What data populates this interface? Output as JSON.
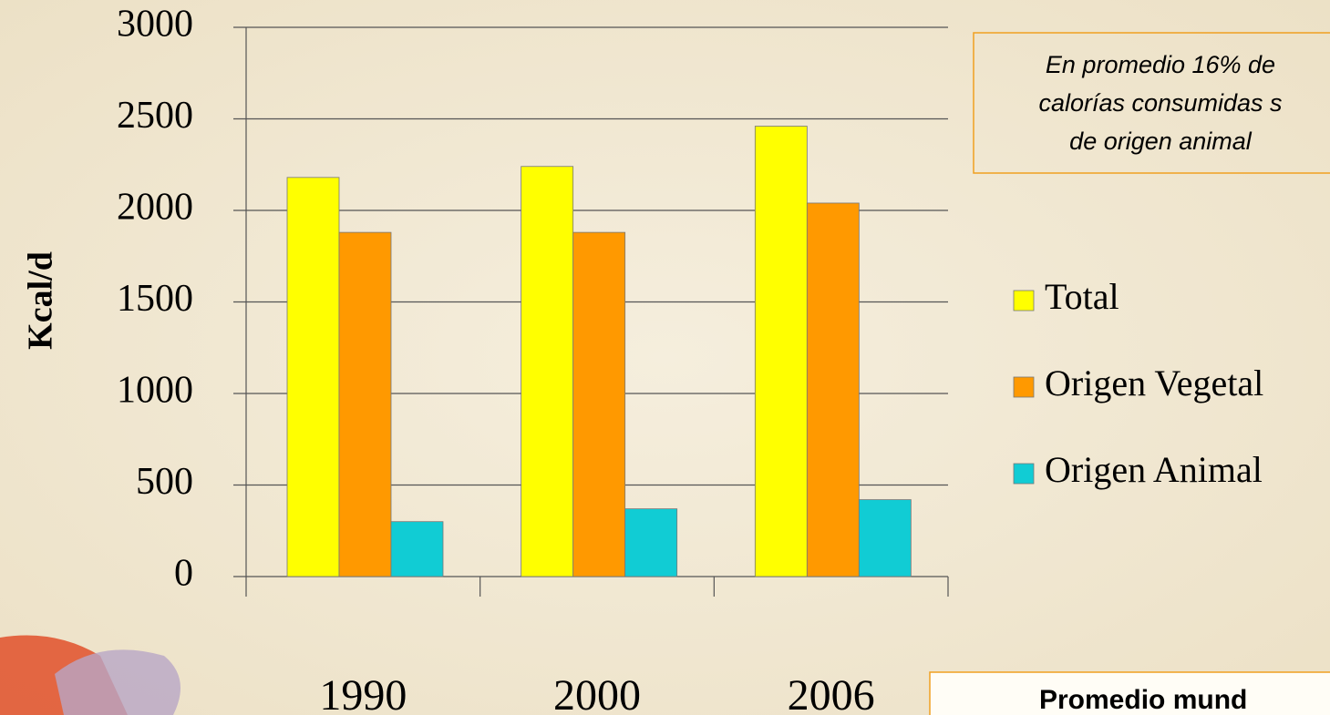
{
  "chart_data": {
    "type": "bar",
    "y_label": "Kcal/d",
    "categories": [
      "1990",
      "2000",
      "2006"
    ],
    "series": [
      {
        "name": "Total",
        "color": "#ffff00",
        "values": [
          2180,
          2240,
          2460
        ]
      },
      {
        "name": "Origen Vegetal",
        "color": "#ff9900",
        "values": [
          1880,
          1880,
          2040
        ]
      },
      {
        "name": "Origen Animal",
        "color": "#11ccd4",
        "values": [
          300,
          370,
          420
        ]
      }
    ],
    "ylim": [
      0,
      3000
    ],
    "yticks": [
      0,
      500,
      1000,
      1500,
      2000,
      2500,
      3000
    ],
    "grid": true,
    "annotation": [
      "En promedio 16% de",
      "calorías consumidas s",
      "de origen animal"
    ],
    "footer_box": "Promedio mund"
  }
}
